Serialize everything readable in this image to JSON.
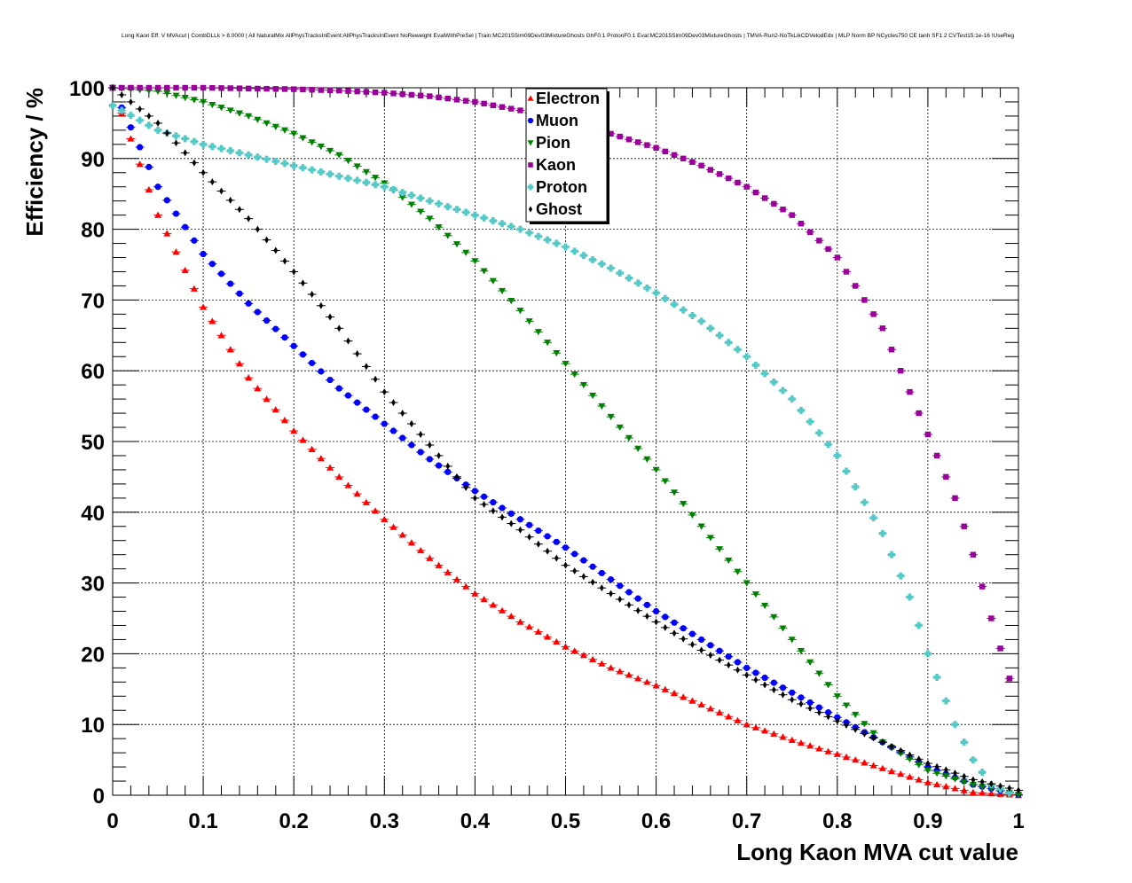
{
  "chart_data": {
    "type": "scatter",
    "title": "Long Kaon Eff. V MVAcut | CombDLLk > 8.0000 | All NaturalMix AllPhysTracksInEvent:AllPhysTracksInEvent NoReweight EvalWithPreSel | Train:MC2015Sim09Dev03MixtureGhosts GhF0.1 ProtonF0.1 Eval:MC2015Sim09Dev03MixtureGhosts | TMVA-Run2-NoTkLikCDVelodEdx | MLP Norm BP NCycles750 CE tanh SF1.2 CVTest15:1e-16 !UseReg",
    "xlabel": "Long Kaon MVA cut value",
    "ylabel": "Efficiency / %",
    "xlim": [
      0,
      1
    ],
    "ylim": [
      0,
      100
    ],
    "grid": true,
    "legend_position": "top-center",
    "xticks": [
      "0",
      "0.1",
      "0.2",
      "0.3",
      "0.4",
      "0.5",
      "0.6",
      "0.7",
      "0.8",
      "0.9",
      "1"
    ],
    "yticks": [
      "0",
      "10",
      "20",
      "30",
      "40",
      "50",
      "60",
      "70",
      "80",
      "90",
      "100"
    ],
    "series": [
      {
        "name": "Electron",
        "marker": "triangle-up",
        "color": "#ff0000",
        "x": [
          0.0,
          0.05,
          0.1,
          0.15,
          0.2,
          0.25,
          0.3,
          0.35,
          0.4,
          0.45,
          0.5,
          0.55,
          0.6,
          0.65,
          0.7,
          0.75,
          0.8,
          0.85,
          0.9,
          0.95,
          1.0
        ],
        "y": [
          100.0,
          82.0,
          69.0,
          59.0,
          51.5,
          45.0,
          39.0,
          33.5,
          28.5,
          24.5,
          21.0,
          18.0,
          15.5,
          12.8,
          10.0,
          7.8,
          5.8,
          3.8,
          1.8,
          0.4,
          0.0
        ]
      },
      {
        "name": "Muon",
        "marker": "circle",
        "color": "#0000ff",
        "x": [
          0.0,
          0.05,
          0.1,
          0.15,
          0.2,
          0.25,
          0.3,
          0.35,
          0.4,
          0.45,
          0.5,
          0.55,
          0.6,
          0.65,
          0.7,
          0.75,
          0.8,
          0.85,
          0.9,
          0.95,
          1.0
        ],
        "y": [
          100.0,
          86.0,
          76.5,
          69.5,
          63.5,
          57.5,
          52.5,
          47.5,
          43.0,
          39.0,
          35.0,
          30.5,
          26.0,
          22.0,
          18.0,
          14.5,
          11.0,
          7.5,
          4.0,
          1.5,
          0.1
        ]
      },
      {
        "name": "Pion",
        "marker": "triangle-down",
        "color": "#008000",
        "x": [
          0.0,
          0.05,
          0.1,
          0.15,
          0.2,
          0.25,
          0.3,
          0.35,
          0.4,
          0.45,
          0.5,
          0.55,
          0.6,
          0.65,
          0.7,
          0.75,
          0.8,
          0.85,
          0.9,
          0.95,
          1.0
        ],
        "y": [
          100.0,
          99.5,
          98.0,
          96.0,
          93.5,
          90.5,
          86.5,
          81.5,
          75.5,
          68.5,
          61.0,
          53.5,
          46.0,
          38.0,
          30.0,
          22.0,
          14.0,
          7.5,
          3.5,
          1.5,
          0.1
        ]
      },
      {
        "name": "Kaon",
        "marker": "square",
        "color": "#990099",
        "x": [
          0.0,
          0.05,
          0.1,
          0.15,
          0.2,
          0.25,
          0.3,
          0.35,
          0.4,
          0.45,
          0.5,
          0.55,
          0.6,
          0.65,
          0.7,
          0.75,
          0.8,
          0.85,
          0.9,
          0.93,
          0.95,
          0.97,
          0.99
        ],
        "y": [
          100.0,
          100.0,
          100.0,
          99.9,
          99.8,
          99.6,
          99.3,
          98.8,
          98.0,
          96.8,
          95.0,
          93.5,
          91.5,
          89.0,
          86.0,
          82.0,
          76.0,
          66.0,
          51.0,
          42.0,
          34.0,
          25.0,
          16.5
        ]
      },
      {
        "name": "Proton",
        "marker": "cross",
        "color": "#55c8c8",
        "x": [
          0.0,
          0.05,
          0.1,
          0.15,
          0.2,
          0.25,
          0.3,
          0.35,
          0.4,
          0.45,
          0.5,
          0.55,
          0.6,
          0.65,
          0.7,
          0.75,
          0.8,
          0.85,
          0.88,
          0.9,
          0.93,
          0.95,
          0.97,
          0.99
        ],
        "y": [
          97.5,
          94.0,
          92.0,
          90.5,
          89.0,
          87.5,
          86.0,
          84.0,
          82.0,
          80.0,
          77.5,
          74.5,
          71.0,
          67.0,
          62.0,
          56.0,
          48.0,
          37.0,
          28.0,
          20.0,
          10.0,
          5.0,
          1.5,
          0.3
        ]
      },
      {
        "name": "Ghost",
        "marker": "diamond",
        "color": "#000000",
        "x": [
          0.0,
          0.05,
          0.1,
          0.15,
          0.2,
          0.25,
          0.3,
          0.35,
          0.4,
          0.45,
          0.5,
          0.55,
          0.6,
          0.65,
          0.7,
          0.75,
          0.8,
          0.85,
          0.9,
          0.95,
          1.0
        ],
        "y": [
          100.0,
          95.0,
          88.0,
          81.5,
          74.0,
          66.0,
          57.0,
          49.5,
          42.0,
          37.5,
          32.5,
          28.5,
          24.5,
          20.5,
          17.0,
          13.5,
          10.5,
          7.5,
          4.5,
          2.2,
          0.7
        ]
      }
    ]
  }
}
